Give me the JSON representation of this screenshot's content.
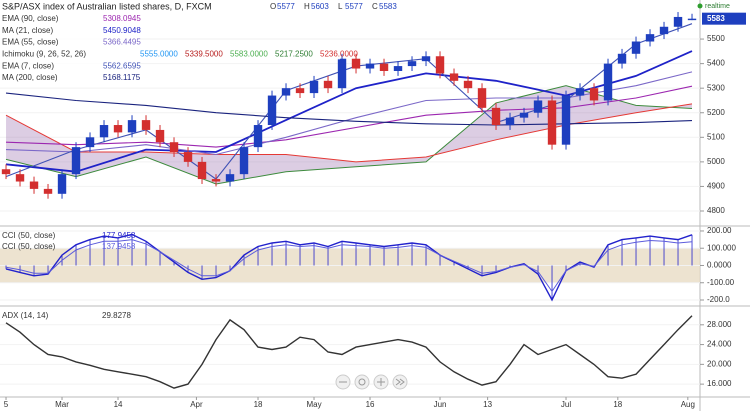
{
  "chart_data": [
    {
      "type": "candlestick",
      "title": "S&P/ASX index of Australian listed shares, D, FXCM",
      "ohlc_labels": [
        "O",
        "H",
        "L",
        "C"
      ],
      "realtime_label": "realtime",
      "up_color": "#1e3fbf",
      "down_color": "#d32f2f",
      "xlim": [
        -0.43,
        49.57
      ],
      "ylim": [
        4743,
        5659
      ],
      "yticks": [
        4800,
        4900,
        5000,
        5100,
        5200,
        5300,
        5400,
        5500
      ],
      "open": [
        4970,
        4950,
        4920,
        4890,
        4870,
        4950,
        5060,
        5100,
        5150,
        5120,
        5170,
        5130,
        5080,
        5040,
        5000,
        4930,
        4920,
        4950,
        5060,
        5150,
        5270,
        5300,
        5280,
        5330,
        5300,
        5420,
        5380,
        5400,
        5370,
        5390,
        5410,
        5430,
        5360,
        5330,
        5300,
        5220,
        5150,
        5180,
        5200,
        5250,
        5070,
        5270,
        5300,
        5250,
        5400,
        5440,
        5490,
        5520,
        5550,
        5577
      ],
      "high": [
        4990,
        4970,
        4940,
        4910,
        4970,
        5080,
        5120,
        5170,
        5170,
        5190,
        5190,
        5150,
        5100,
        5060,
        5020,
        4950,
        4970,
        5080,
        5170,
        5290,
        5320,
        5320,
        5350,
        5350,
        5440,
        5440,
        5420,
        5420,
        5410,
        5430,
        5450,
        5450,
        5380,
        5350,
        5320,
        5240,
        5200,
        5220,
        5270,
        5270,
        5290,
        5320,
        5320,
        5420,
        5460,
        5510,
        5540,
        5570,
        5610,
        5603
      ],
      "low": [
        4930,
        4900,
        4870,
        4850,
        4850,
        4930,
        5040,
        5080,
        5100,
        5100,
        5110,
        5060,
        5020,
        4980,
        4910,
        4900,
        4900,
        4930,
        5040,
        5130,
        5250,
        5260,
        5260,
        5280,
        5280,
        5360,
        5360,
        5350,
        5350,
        5370,
        5390,
        5340,
        5310,
        5280,
        5200,
        5130,
        5130,
        5160,
        5180,
        5050,
        5050,
        5250,
        5230,
        5230,
        5380,
        5420,
        5470,
        5500,
        5530,
        5577
      ],
      "close": [
        4950,
        4920,
        4890,
        4870,
        4950,
        5060,
        5100,
        5150,
        5120,
        5170,
        5130,
        5080,
        5040,
        5000,
        4930,
        4920,
        4950,
        5060,
        5150,
        5270,
        5300,
        5280,
        5330,
        5300,
        5420,
        5380,
        5400,
        5370,
        5390,
        5410,
        5430,
        5360,
        5330,
        5300,
        5220,
        5150,
        5180,
        5200,
        5250,
        5070,
        5270,
        5300,
        5250,
        5400,
        5440,
        5490,
        5520,
        5550,
        5590,
        5583
      ],
      "overlays": [
        {
          "name": "EMA (90, close)",
          "color": "#9c27b0",
          "value_text": "5308.0945",
          "x": [
            0,
            5,
            10,
            15,
            20,
            25,
            30,
            35,
            40,
            45,
            49
          ],
          "values": [
            5080,
            5070,
            5080,
            5060,
            5090,
            5140,
            5190,
            5210,
            5220,
            5260,
            5308.0945
          ]
        },
        {
          "name": "MA (21, close)",
          "color": "#1e22c8",
          "value_text": "5450.9048",
          "x": [
            0,
            5,
            10,
            15,
            20,
            25,
            30,
            35,
            40,
            45,
            49
          ],
          "values": [
            4990,
            4960,
            5050,
            5040,
            5170,
            5300,
            5360,
            5330,
            5270,
            5350,
            5450.9048
          ]
        },
        {
          "name": "EMA (55, close)",
          "color": "#7b68c8",
          "value_text": "5366.4495",
          "x": [
            0,
            5,
            10,
            15,
            20,
            25,
            30,
            35,
            40,
            45,
            49
          ],
          "values": [
            5050,
            5040,
            5070,
            5030,
            5100,
            5180,
            5250,
            5260,
            5260,
            5310,
            5366.4495
          ]
        },
        {
          "name": "EMA (7, close)",
          "color": "#3f51b5",
          "value_text": "5562.6595",
          "x": [
            0,
            5,
            10,
            15,
            20,
            25,
            30,
            35,
            40,
            45,
            49
          ],
          "values": [
            4940,
            5050,
            5130,
            4930,
            5290,
            5390,
            5420,
            5160,
            5250,
            5480,
            5562.6595
          ]
        },
        {
          "name": "MA (200, close)",
          "color": "#1a237e",
          "value_text": "5168.1175",
          "x": [
            0,
            5,
            10,
            15,
            20,
            25,
            30,
            35,
            40,
            45,
            49
          ],
          "values": [
            5280,
            5250,
            5230,
            5200,
            5180,
            5165,
            5155,
            5150,
            5155,
            5160,
            5168.1175
          ]
        }
      ],
      "ichimoku": {
        "name": "Ichimoku (9, 26, 52, 26)",
        "value_texts": [
          "5555.0000",
          "5339.5000",
          "5583.0000",
          "5217.2500",
          "5236.0000"
        ],
        "value_colors": [
          "#2196f3",
          "#b71c1c",
          "#4caf50",
          "#2e7d32",
          "#d32f2f"
        ],
        "x": [
          0,
          5,
          10,
          15,
          20,
          25,
          30,
          35,
          40,
          45,
          49
        ],
        "span_a": [
          5010,
          4940,
          5020,
          4910,
          4960,
          4980,
          5000,
          5240,
          5310,
          5230,
          5217.25
        ],
        "span_b": [
          5190,
          5040,
          5040,
          5030,
          5030,
          5000,
          5020,
          5090,
          5150,
          5200,
          5236
        ],
        "span_a_color": "#3d8b3d",
        "span_b_color": "#e53935",
        "cloud_color": "#9c6fb0"
      }
    },
    {
      "type": "line",
      "xlim": [
        -0.43,
        49.57
      ],
      "ylim": [
        -229,
        223
      ],
      "yticks": [
        {
          "value": 200,
          "label": "200.00"
        },
        {
          "value": 100,
          "label": "100.000"
        },
        {
          "value": 0,
          "label": "0.0000"
        },
        {
          "value": -100,
          "label": "-100.00"
        },
        {
          "value": -200,
          "label": "-200.0"
        }
      ],
      "band": [
        -100,
        100
      ],
      "band_color": "#e8dcc4",
      "series": [
        {
          "name": "CCI (50, close)",
          "color": "#2222cc",
          "value_text": "177.9458",
          "histogram": true,
          "values": [
            -20,
            -40,
            -60,
            -50,
            60,
            120,
            150,
            170,
            160,
            180,
            140,
            80,
            20,
            -40,
            -80,
            -70,
            -30,
            60,
            110,
            130,
            140,
            120,
            130,
            110,
            140,
            130,
            120,
            110,
            120,
            130,
            120,
            60,
            20,
            -20,
            -60,
            -40,
            -10,
            10,
            -50,
            -200,
            -30,
            20,
            -10,
            120,
            150,
            160,
            170,
            160,
            150,
            177.9458
          ]
        },
        {
          "name": "CCI (50, close)",
          "color": "#5c5cdc",
          "value_text": "137.9458",
          "histogram": false,
          "values": [
            -10,
            -25,
            -45,
            -45,
            30,
            90,
            120,
            140,
            140,
            150,
            125,
            80,
            30,
            -20,
            -60,
            -60,
            -30,
            40,
            90,
            110,
            120,
            110,
            115,
            100,
            120,
            115,
            110,
            100,
            105,
            115,
            105,
            60,
            25,
            -10,
            -45,
            -35,
            -10,
            5,
            -35,
            -150,
            -30,
            10,
            -5,
            90,
            120,
            135,
            145,
            140,
            130,
            137.9458
          ]
        }
      ]
    },
    {
      "type": "line",
      "xlim": [
        -0.43,
        49.57
      ],
      "ylim": [
        13.6,
        31.6
      ],
      "yticks": [
        {
          "value": 28,
          "label": "28.000"
        },
        {
          "value": 24,
          "label": "24.000"
        },
        {
          "value": 20,
          "label": "20.000"
        },
        {
          "value": 16,
          "label": "16.000"
        }
      ],
      "xticks": [
        {
          "value": 0,
          "label": "5"
        },
        {
          "value": 4,
          "label": "Mar"
        },
        {
          "value": 8,
          "label": "14"
        },
        {
          "value": 13.6,
          "label": "Apr"
        },
        {
          "value": 18,
          "label": "18"
        },
        {
          "value": 22,
          "label": "May"
        },
        {
          "value": 26,
          "label": "16"
        },
        {
          "value": 31,
          "label": "Jun"
        },
        {
          "value": 34.4,
          "label": "13"
        },
        {
          "value": 40,
          "label": "Jul"
        },
        {
          "value": 43.7,
          "label": "18"
        },
        {
          "value": 48.7,
          "label": "Aug"
        }
      ],
      "series": [
        {
          "name": "ADX (14, 14)",
          "color": "#333333",
          "value_text": "29.8278",
          "histogram": false,
          "values": [
            28.4,
            26.5,
            24,
            22,
            21.5,
            20.5,
            19.8,
            19,
            18.5,
            18,
            17.5,
            16.5,
            15.2,
            16,
            20,
            25,
            29,
            27,
            23.5,
            23,
            23.5,
            25.5,
            25,
            22.5,
            22,
            23.5,
            24,
            24.5,
            25,
            24.5,
            23.5,
            20.5,
            18.5,
            17,
            15.8,
            16.5,
            20,
            24,
            22,
            23,
            24,
            22,
            20,
            17.5,
            17.2,
            18,
            21,
            24,
            27,
            29.8278
          ]
        }
      ]
    }
  ]
}
